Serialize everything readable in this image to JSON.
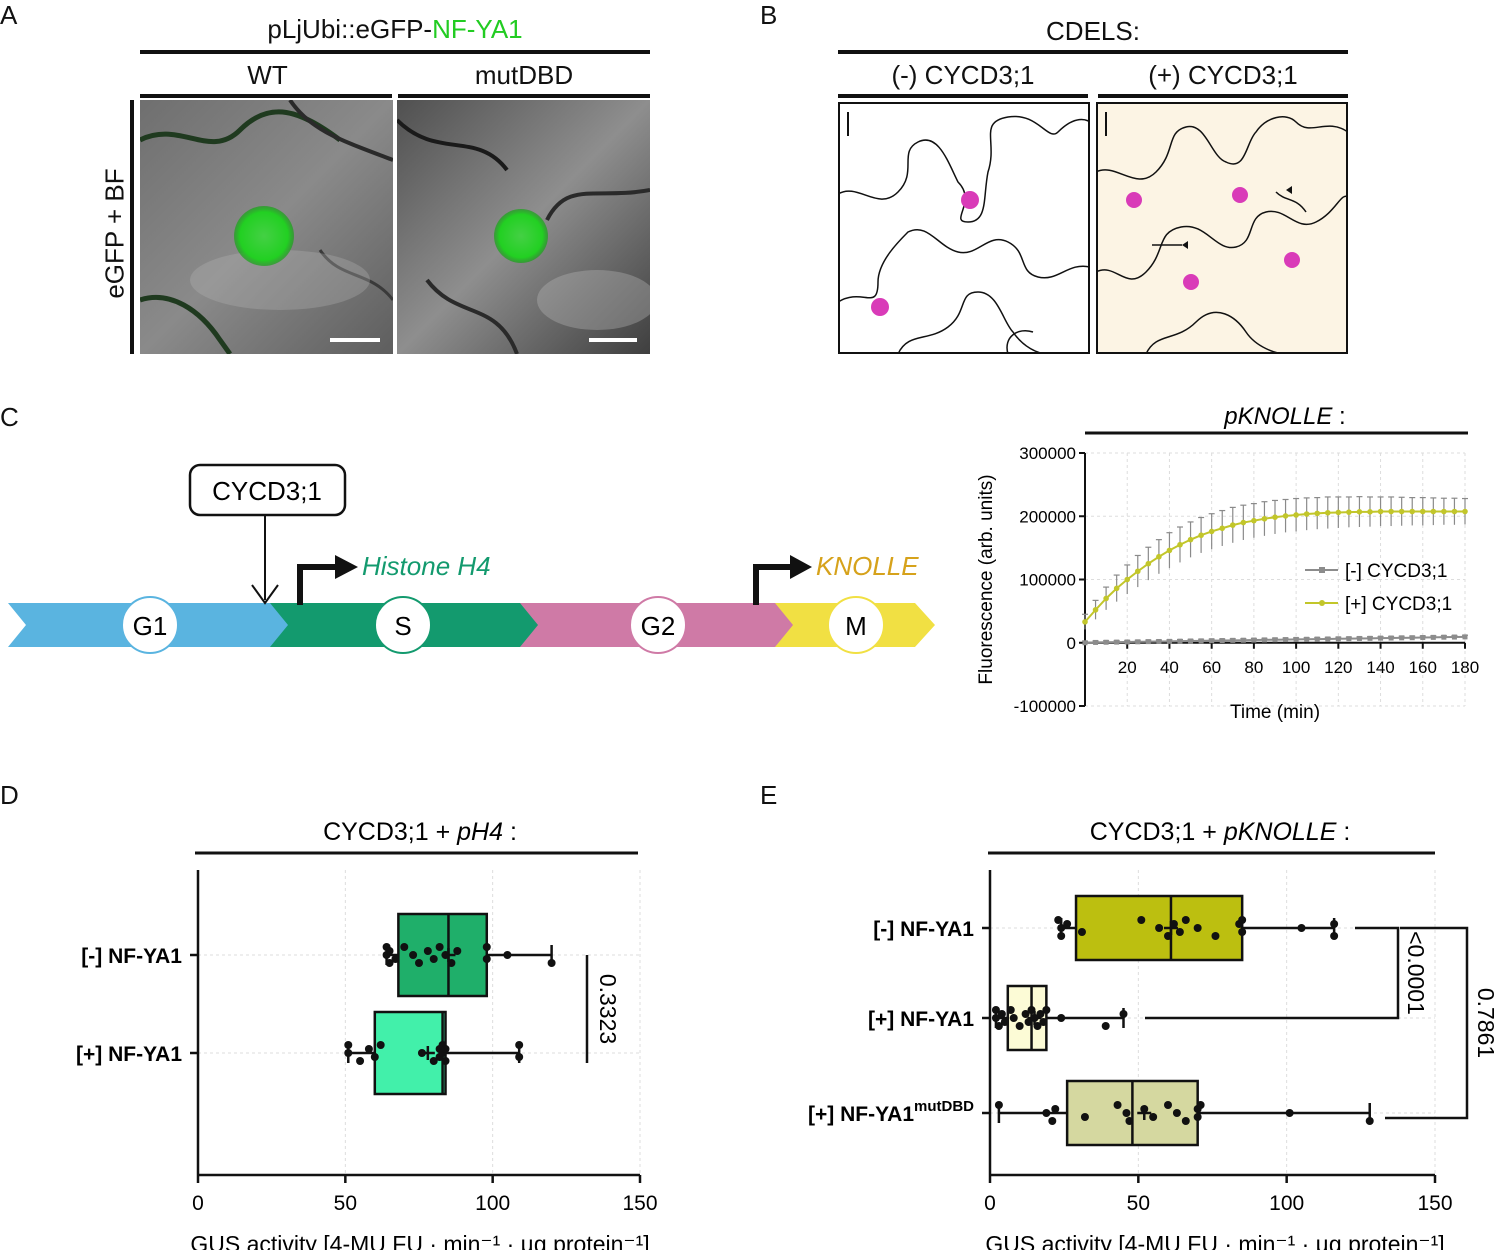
{
  "panels": {
    "A": {
      "label": "A",
      "construct_prefix": "pLjUbi::eGFP-",
      "construct_highlight": "NF-YA1",
      "col1": "WT",
      "col2": "mutDBD",
      "row_label": "eGFP + BF"
    },
    "B": {
      "label": "B",
      "title": "CDELS:",
      "col1": "(-) CYCD3;1",
      "col2": "(+) CYCD3;1"
    },
    "C": {
      "label": "C",
      "cyclin_box": "CYCD3;1",
      "gene1": "Histone H4",
      "gene2": "KNOLLE",
      "phases": [
        "G1",
        "S",
        "G2",
        "M"
      ],
      "colors": {
        "G1": "#5ab4e0",
        "S": "#139a6e",
        "G2": "#cf7aa6",
        "M": "#f1e043",
        "histone": "#139a6e",
        "knolle": "#d6a21b"
      }
    },
    "D": {
      "label": "D"
    },
    "E": {
      "label": "E"
    }
  },
  "chart_data": [
    {
      "type": "line",
      "title": "pKNOLLE :",
      "xlabel": "Time (min)",
      "ylabel": "Fluorescence (arb. units)",
      "xlim": [
        0,
        180
      ],
      "ylim": [
        -100000,
        300000
      ],
      "xticks": [
        "20",
        "40",
        "60",
        "80",
        "100",
        "120",
        "140",
        "160",
        "180"
      ],
      "yticks": [
        "300000",
        "200000",
        "100000",
        "0",
        "-100000"
      ],
      "grid": true,
      "legend_position": "right",
      "x": [
        0,
        5,
        10,
        15,
        20,
        25,
        30,
        35,
        40,
        45,
        50,
        55,
        60,
        65,
        70,
        75,
        80,
        85,
        90,
        95,
        100,
        105,
        110,
        115,
        120,
        125,
        130,
        135,
        140,
        145,
        150,
        155,
        160,
        165,
        170,
        175,
        180
      ],
      "series": [
        {
          "name": "[-] CYCD3;1",
          "color": "#8c8c8c",
          "values": [
            0,
            500,
            800,
            1000,
            1200,
            1500,
            1800,
            2000,
            2200,
            2500,
            2800,
            3000,
            3300,
            3500,
            3800,
            4000,
            4300,
            4500,
            4800,
            5000,
            5300,
            5500,
            5800,
            6000,
            6300,
            6500,
            6800,
            7000,
            7300,
            7500,
            7800,
            8000,
            8300,
            8500,
            8800,
            9000,
            9300
          ],
          "error": 2500
        },
        {
          "name": "[+] CYCD3;1",
          "color": "#c2c62a",
          "values": [
            33000,
            52000,
            70000,
            86000,
            100000,
            113000,
            125000,
            136000,
            146000,
            155000,
            163000,
            170000,
            176000,
            181000,
            186000,
            190000,
            193000,
            196000,
            198500,
            200500,
            202000,
            203500,
            204500,
            205500,
            206000,
            206500,
            207000,
            207000,
            207500,
            207500,
            207500,
            207500,
            207500,
            207500,
            207500,
            207500,
            207500
          ],
          "error": [
            12000,
            15000,
            18000,
            21000,
            23000,
            25000,
            26000,
            27000,
            28000,
            28000,
            28000,
            28000,
            28000,
            28000,
            28000,
            27500,
            27000,
            27000,
            26500,
            26000,
            26000,
            25500,
            25000,
            25000,
            24500,
            24000,
            24000,
            23500,
            23000,
            23000,
            22500,
            22000,
            22000,
            21500,
            21000,
            21000,
            20500
          ]
        }
      ]
    },
    {
      "type": "box",
      "title_prefix": "CYCD3;1 + ",
      "title_italic": "pH4",
      "title_suffix": " :",
      "xlabel": "GUS activity [4-MU FU · min⁻¹ · µg protein⁻¹]",
      "xlim": [
        0,
        150
      ],
      "xticks": [
        "0",
        "50",
        "100",
        "150"
      ],
      "grid": true,
      "categories": [
        "[-] NF-YA1",
        "[+] NF-YA1"
      ],
      "boxes": [
        {
          "name": "[-] NF-YA1",
          "color": "#1faf6a",
          "whisker_low": 64,
          "q1": 68,
          "median": 85,
          "q3": 98,
          "whisker_high": 120,
          "mean": 85,
          "points": [
            64,
            64,
            65,
            65,
            67,
            70,
            73,
            75,
            78,
            80,
            82,
            84,
            86,
            88,
            98,
            98,
            105,
            120
          ]
        },
        {
          "name": "[+] NF-YA1",
          "color": "#42f0aa",
          "whisker_low": 51,
          "q1": 60,
          "median": 83,
          "q3": 84,
          "whisker_high": 109,
          "mean": 78,
          "points": [
            51,
            51,
            55,
            58,
            60,
            62,
            76,
            80,
            82,
            82,
            83,
            83,
            84,
            84,
            109,
            109
          ]
        }
      ],
      "comparisons": [
        {
          "label": "0.3323"
        }
      ]
    },
    {
      "type": "box",
      "title_prefix": "CYCD3;1 + ",
      "title_italic": "pKNOLLE",
      "title_suffix": " :",
      "xlabel": "GUS activity [4-MU FU · min⁻¹ · µg protein⁻¹]",
      "xlim": [
        0,
        150
      ],
      "xticks": [
        "0",
        "50",
        "100",
        "150"
      ],
      "grid": true,
      "categories": [
        "[-] NF-YA1",
        "[+] NF-YA1",
        "[+] NF-YA1"
      ],
      "category_sup": [
        "",
        "",
        "mutDBD"
      ],
      "boxes": [
        {
          "name": "[-] NF-YA1",
          "color": "#bcbf10",
          "whisker_low": 24,
          "q1": 29,
          "median": 61,
          "q3": 85,
          "whisker_high": 116,
          "mean": 61,
          "points": [
            23,
            24,
            24,
            26,
            31,
            51,
            57,
            60,
            62,
            64,
            66,
            70,
            76,
            84,
            85,
            85,
            105,
            116,
            116
          ]
        },
        {
          "name": "[+] NF-YA1",
          "color": "#fcfbd6",
          "whisker_low": 2,
          "q1": 6,
          "median": 14,
          "q3": 19,
          "whisker_high": 45,
          "mean": 15,
          "points": [
            2,
            2,
            3,
            4,
            5,
            7,
            8,
            10,
            12,
            13,
            14,
            15,
            16,
            17,
            18,
            19,
            24,
            39,
            45
          ]
        },
        {
          "name": "[+] NF-YA1 mutDBD",
          "color": "#d5d8a0",
          "whisker_low": 3,
          "q1": 26,
          "median": 48,
          "q3": 70,
          "whisker_high": 128,
          "mean": 52,
          "points": [
            3,
            19,
            21,
            22,
            32,
            43,
            46,
            47,
            52,
            55,
            60,
            63,
            66,
            70,
            70,
            71,
            101,
            128
          ]
        }
      ],
      "comparisons": [
        {
          "label": "<0.0001"
        },
        {
          "label": "0.7861"
        }
      ]
    }
  ]
}
